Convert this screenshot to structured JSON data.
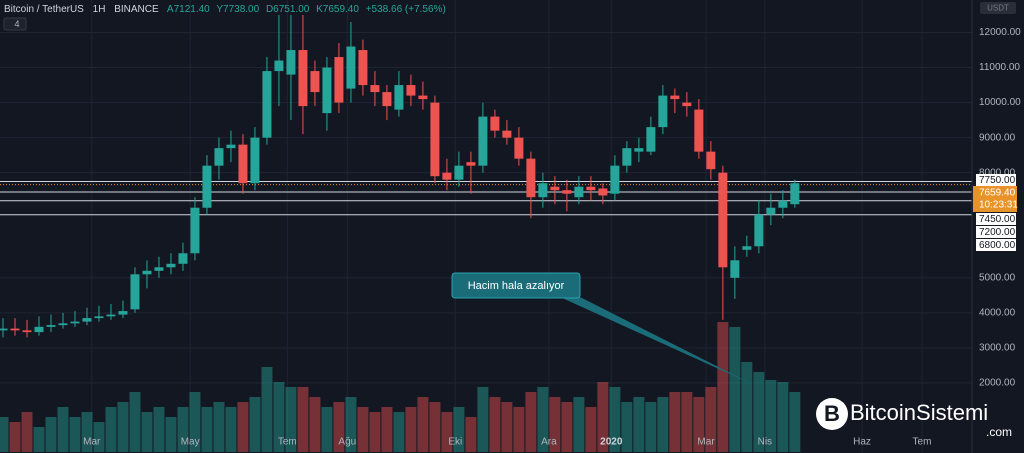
{
  "header": {
    "symbol": "Bitcoin / TetherUS",
    "interval": "1H",
    "exchange": "BINANCE",
    "fields": [
      "A7121.40",
      "Y7738.00",
      "D6751.00",
      "K7659.40",
      "+538.66 (+7.56%)"
    ],
    "indicators": "4",
    "currency": "USDT"
  },
  "chart_data": {
    "type": "candlestick",
    "up_color": "#26a69a",
    "down_color": "#ef5350",
    "open": [
      3500,
      3550,
      3500,
      3450,
      3600,
      3650,
      3700,
      3750,
      3850,
      3900,
      3950,
      4100,
      5100,
      5200,
      5300,
      5400,
      5700,
      7000,
      8200,
      8700,
      8800,
      7700,
      9000,
      10900,
      10800,
      11500,
      10900,
      9700,
      11300,
      10400,
      11500,
      10500,
      10300,
      9800,
      10500,
      10200,
      10000,
      8000,
      7800,
      8300,
      8200,
      9600,
      9200,
      9000,
      8400,
      7300,
      7600,
      7500,
      7300,
      7600,
      7550,
      7400,
      8200,
      8600,
      8600,
      9300,
      10200,
      10000,
      9800,
      8600,
      8000,
      5000,
      5800,
      5900,
      6800,
      7000,
      7100
    ],
    "high": [
      3850,
      3850,
      3800,
      3900,
      3950,
      4000,
      4050,
      4150,
      4200,
      4250,
      4350,
      5300,
      5500,
      5600,
      5700,
      6000,
      7300,
      8500,
      9000,
      9200,
      9100,
      9300,
      11300,
      12500,
      12500,
      12500,
      11200,
      11300,
      11700,
      12300,
      11800,
      10900,
      10500,
      10900,
      10800,
      10600,
      10200,
      8400,
      8600,
      8600,
      10000,
      9800,
      9500,
      9300,
      8600,
      8000,
      7900,
      7800,
      7900,
      7900,
      7700,
      8500,
      8900,
      9000,
      9600,
      10500,
      10400,
      10300,
      10100,
      8900,
      8200,
      5900,
      6200,
      7200,
      7400,
      7500,
      7800
    ],
    "low": [
      3300,
      3350,
      3300,
      3350,
      3450,
      3550,
      3600,
      3650,
      3750,
      3800,
      3850,
      4000,
      4700,
      5000,
      5100,
      5200,
      5500,
      6800,
      7800,
      8300,
      7400,
      7500,
      8800,
      9900,
      9500,
      9100,
      9900,
      9200,
      9700,
      10000,
      10200,
      9900,
      9500,
      9600,
      9900,
      9800,
      7700,
      7500,
      7600,
      7400,
      8000,
      9000,
      8800,
      8200,
      6700,
      7000,
      7100,
      6900,
      7100,
      7200,
      7100,
      7200,
      8000,
      8300,
      8500,
      9100,
      9700,
      9600,
      8400,
      7800,
      3800,
      4400,
      5600,
      5700,
      6500,
      6700,
      7000
    ],
    "close": [
      3550,
      3500,
      3450,
      3600,
      3650,
      3700,
      3750,
      3850,
      3900,
      3950,
      4050,
      5100,
      5200,
      5300,
      5400,
      5700,
      7000,
      8200,
      8700,
      8800,
      7700,
      9000,
      10900,
      11200,
      11500,
      9900,
      10300,
      11000,
      10000,
      11600,
      10500,
      10300,
      9900,
      10500,
      10200,
      10100,
      7900,
      7800,
      8200,
      8200,
      9600,
      9200,
      9000,
      8400,
      7300,
      7700,
      7500,
      7400,
      7600,
      7500,
      7350,
      8200,
      8700,
      8700,
      9300,
      10200,
      10100,
      9900,
      8600,
      8100,
      5300,
      5500,
      5900,
      6800,
      7000,
      7200,
      7700
    ],
    "volume": [
      35,
      30,
      40,
      25,
      35,
      45,
      35,
      40,
      30,
      45,
      50,
      60,
      40,
      45,
      35,
      45,
      60,
      45,
      50,
      45,
      50,
      55,
      85,
      70,
      65,
      65,
      55,
      45,
      50,
      55,
      45,
      40,
      45,
      40,
      45,
      55,
      50,
      40,
      45,
      35,
      65,
      55,
      50,
      45,
      60,
      65,
      55,
      50,
      55,
      45,
      70,
      65,
      50,
      55,
      50,
      55,
      60,
      60,
      55,
      65,
      130,
      125,
      90,
      80,
      72,
      70,
      60
    ],
    "volume_lim": [
      0,
      140
    ],
    "ylim": [
      0,
      12500
    ],
    "yticks": [
      {
        "value": 2000,
        "label": "2000.00"
      },
      {
        "value": 3000,
        "label": "3000.00"
      },
      {
        "value": 4000,
        "label": "4000.00"
      },
      {
        "value": 5000,
        "label": "5000.00"
      },
      {
        "value": 8000,
        "label": "8000.00"
      },
      {
        "value": 9000,
        "label": "9000.00"
      },
      {
        "value": 10000,
        "label": "10000.00"
      },
      {
        "value": 11000,
        "label": "11000.00"
      },
      {
        "value": 12000,
        "label": "12000.00"
      }
    ],
    "xlim": [
      0,
      80.6
    ],
    "xticks": [
      {
        "value": 7.4,
        "label": "Mar"
      },
      {
        "value": 15.6,
        "label": "May"
      },
      {
        "value": 23.7,
        "label": "Tem"
      },
      {
        "value": 28.7,
        "label": "Ağu"
      },
      {
        "value": 37.7,
        "label": "Eki"
      },
      {
        "value": 45.5,
        "label": "Ara"
      },
      {
        "value": 50.7,
        "label": "2020"
      },
      {
        "value": 58.6,
        "label": "Mar"
      },
      {
        "value": 63.5,
        "label": "Nis"
      },
      {
        "value": 71.6,
        "label": "Haz"
      },
      {
        "value": 76.6,
        "label": "Tem"
      }
    ],
    "levels": [
      {
        "value": 7750,
        "label": "7750.00"
      },
      {
        "value": 7450,
        "label": "7450.00"
      },
      {
        "value": 7200,
        "label": "7200.00"
      },
      {
        "value": 6800,
        "label": "6800.00"
      }
    ],
    "last_price": {
      "value": 7659.4,
      "label": "7659.40",
      "countdown": "10:23:31"
    },
    "annotation": "Hacim hala azalıyor"
  },
  "watermark": {
    "name": "BitcoinSistemi",
    "suffix": ".com"
  }
}
